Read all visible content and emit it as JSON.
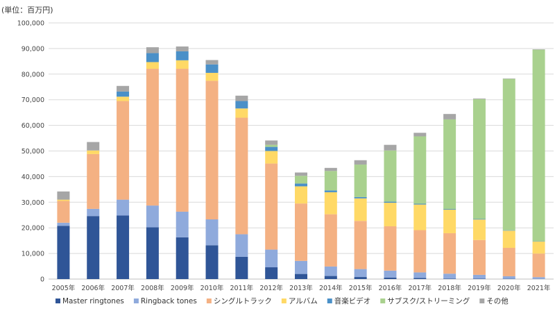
{
  "chart_data": {
    "type": "stacked-bar",
    "unit_label": "(単位：百万円)",
    "categories": [
      "2005年",
      "2006年",
      "2007年",
      "2008年",
      "2009年",
      "2010年",
      "2011年",
      "2012年",
      "2013年",
      "2014年",
      "2015年",
      "2016年",
      "2017年",
      "2018年",
      "2019年",
      "2020年",
      "2021年"
    ],
    "ylim": [
      0,
      100000
    ],
    "yticks": [
      0,
      10000,
      20000,
      30000,
      40000,
      50000,
      60000,
      70000,
      80000,
      90000,
      100000
    ],
    "ytick_labels": [
      "0",
      "10,000",
      "20,000",
      "30,000",
      "40,000",
      "50,000",
      "60,000",
      "70,000",
      "80,000",
      "90,000",
      "100,000"
    ],
    "grid": true,
    "legend_position": "bottom",
    "series": [
      {
        "name": "Master ringtones",
        "color": "#2f5597",
        "values": [
          20800,
          24600,
          24800,
          20200,
          16300,
          13200,
          8700,
          4600,
          2000,
          1200,
          800,
          600,
          400,
          200,
          150,
          100,
          50
        ]
      },
      {
        "name": "Ringback tones",
        "color": "#8faadc",
        "values": [
          1200,
          2800,
          6200,
          8500,
          10000,
          10100,
          8800,
          6900,
          5100,
          3700,
          3100,
          2700,
          2200,
          1900,
          1500,
          1000,
          700
        ]
      },
      {
        "name": "シングルトラック",
        "color": "#f4b183",
        "values": [
          8500,
          21400,
          38500,
          53400,
          55800,
          54100,
          45500,
          33600,
          22400,
          20400,
          18800,
          17300,
          16500,
          15800,
          13600,
          11100,
          9200
        ]
      },
      {
        "name": "アルバム",
        "color": "#ffd966",
        "values": [
          500,
          1400,
          1700,
          2600,
          3300,
          3100,
          3600,
          4900,
          6700,
          8600,
          8800,
          9200,
          10000,
          9200,
          8000,
          6700,
          4700
        ]
      },
      {
        "name": "音楽ビデオ",
        "color": "#4a90c8",
        "values": [
          0,
          0,
          2000,
          3500,
          3500,
          3300,
          2900,
          1600,
          1100,
          700,
          500,
          400,
          300,
          250,
          200,
          150,
          100
        ]
      },
      {
        "name": "サブスク/ストリーミング",
        "color": "#a9d18e",
        "values": [
          0,
          0,
          0,
          0,
          0,
          0,
          0,
          800,
          3000,
          7600,
          12700,
          20000,
          26300,
          35000,
          46800,
          59100,
          74800
        ]
      },
      {
        "name": "その他",
        "color": "#a6a6a6",
        "values": [
          3200,
          3300,
          2200,
          2300,
          1900,
          1700,
          2100,
          1700,
          1300,
          1200,
          1700,
          2200,
          1400,
          2100,
          250,
          150,
          150
        ]
      }
    ]
  }
}
